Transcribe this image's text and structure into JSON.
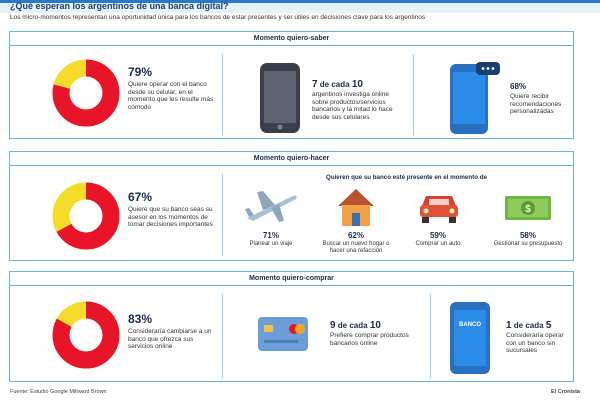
{
  "header": {
    "title": "¿Qué esperan los argentinos de una banca digital?",
    "subtitle": "Los micro-momentos representan una oportunidad única para los bancos de estar presentes y ser útiles en decisiones clave para los argentinos"
  },
  "colors": {
    "accent": "#2a79c8",
    "donut_red": "#e8142a",
    "donut_yellow": "#f5dc2a",
    "border": "#6bb0df"
  },
  "sections": [
    {
      "header": "Momento quiero-saber",
      "stat": {
        "value": "79%",
        "fraction": 0.79,
        "text": "Quiere operar con el banco desde su celular, en el momento que les resulte más cómodo"
      },
      "blocks": [
        {
          "icon": "smartphone-icon",
          "title_num": "7",
          "title_rest": "de cada",
          "title_num2": "10",
          "text": "argentinos investiga online sobre productos/servicios bancarios y la mitad lo hace desde sus celulares"
        },
        {
          "icon": "phone-message-icon",
          "title": "68%",
          "text": "Quiere recibir recomendaciones personalizadas"
        }
      ]
    },
    {
      "header": "Momento quiero-hacer",
      "stat": {
        "value": "67%",
        "fraction": 0.67,
        "text": "Quiere que su banco seas su asesor en los momentos de tomar decisiones importantes"
      },
      "subheader": "Quieren que su banco esté presente en el momento de",
      "items": [
        {
          "icon": "airplane-icon",
          "value": "71%",
          "label": "Planear un viaje"
        },
        {
          "icon": "house-icon",
          "value": "62%",
          "label": "Buscar un nuevo hogar o hacer una refacción"
        },
        {
          "icon": "car-icon",
          "value": "59%",
          "label": "Comprar un auto"
        },
        {
          "icon": "banknote-icon",
          "value": "58%",
          "label": "Gestionar su presupuesto"
        }
      ]
    },
    {
      "header": "Momento quiero-comprar",
      "stat": {
        "value": "83%",
        "fraction": 0.83,
        "text": "Consideraría cambiarse a un banco que ofrezca sus servicios online"
      },
      "blocks": [
        {
          "icon": "credit-cards-icon",
          "title_num": "9",
          "title_rest": "de cada",
          "title_num2": "10",
          "text": "Prefiere comprar productos bancarios online"
        },
        {
          "icon": "banco-phone-icon",
          "phone_label": "BANCO",
          "title_num": "1",
          "title_rest": "de cada",
          "title_num2": "5",
          "text": "Consideraría operar con un banco sin sucursales"
        }
      ]
    }
  ],
  "footer": {
    "source": "Fuente: Estudio Google Millward Brown",
    "brand": "El Cronista"
  }
}
